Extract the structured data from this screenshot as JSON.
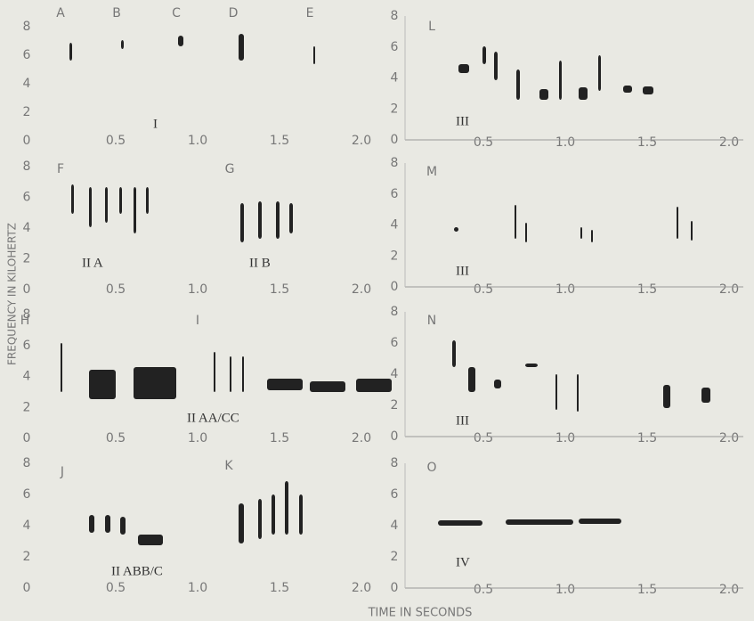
{
  "y_axis_label": "FREQUENCY IN KILOHERTZ",
  "x_axis_label": "TIME IN SECONDS",
  "panels": [
    {
      "letters": [
        "A",
        "B",
        "C",
        "D",
        "E"
      ],
      "sections": [
        "I"
      ],
      "y_ticks": [
        "8",
        "6",
        "4",
        "2",
        "0"
      ],
      "x_ticks": [
        "0.5",
        "1.0",
        "1.5",
        "2.0"
      ]
    },
    {
      "letters": [
        "F",
        "G"
      ],
      "sections": [
        "II A",
        "II B"
      ],
      "y_ticks": [
        "8",
        "6",
        "4",
        "2",
        "0"
      ],
      "x_ticks": [
        "0.5",
        "1.0",
        "1.5",
        "2.0"
      ]
    },
    {
      "letters": [
        "H",
        "I"
      ],
      "sections": [
        "II AA/CC"
      ],
      "y_ticks": [
        "8",
        "6",
        "4",
        "2",
        "0"
      ],
      "x_ticks": [
        "0.5",
        "1.0",
        "1.5",
        "2.0"
      ]
    },
    {
      "letters": [
        "J",
        "K"
      ],
      "sections": [
        "II ABB/C"
      ],
      "y_ticks": [
        "8",
        "6",
        "4",
        "2",
        "0"
      ],
      "x_ticks": [
        "0.5",
        "1.0",
        "1.5",
        "2.0"
      ]
    },
    {
      "letters": [
        "L"
      ],
      "sections": [
        "III"
      ],
      "y_ticks": [
        "8",
        "6",
        "4",
        "2",
        "0"
      ],
      "x_ticks": [
        "0.5",
        "1.0",
        "1.5",
        "2.0"
      ]
    },
    {
      "letters": [
        "M"
      ],
      "sections": [
        "III"
      ],
      "y_ticks": [
        "8",
        "6",
        "4",
        "2",
        "0"
      ],
      "x_ticks": [
        "0.5",
        "1.0",
        "1.5",
        "2.0"
      ]
    },
    {
      "letters": [
        "N"
      ],
      "sections": [
        "III"
      ],
      "y_ticks": [
        "8",
        "6",
        "4",
        "2",
        "0"
      ],
      "x_ticks": [
        "0.5",
        "1.0",
        "1.5",
        "2.0"
      ]
    },
    {
      "letters": [
        "O"
      ],
      "sections": [
        "IV"
      ],
      "y_ticks": [
        "8",
        "6",
        "4",
        "2",
        "0"
      ],
      "x_ticks": [
        "0.5",
        "1.0",
        "1.5",
        "2.0"
      ]
    }
  ]
}
